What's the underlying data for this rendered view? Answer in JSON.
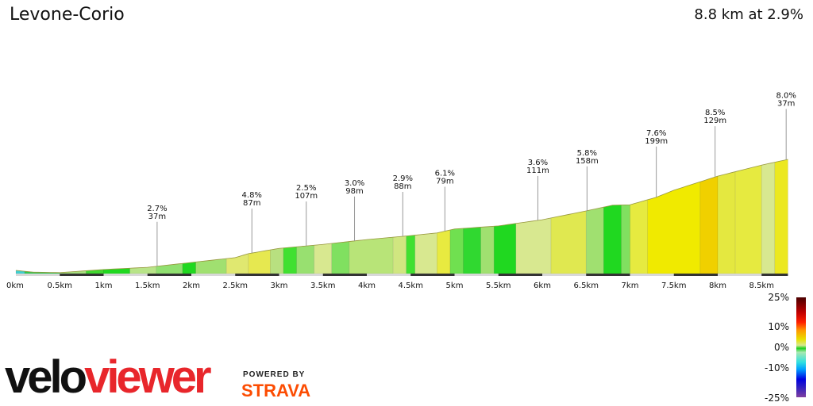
{
  "title": "Levone-Corio",
  "summary": "8.8 km at 2.9%",
  "chart_data": {
    "type": "area",
    "xlabel": "",
    "ylabel": "",
    "xlim": [
      0,
      8.8
    ],
    "x_ticks": [
      "0km",
      "0.5km",
      "1km",
      "1.5km",
      "2km",
      "2.5km",
      "3km",
      "3.5km",
      "4km",
      "4.5km",
      "5km",
      "5.5km",
      "6km",
      "6.5km",
      "7km",
      "7.5km",
      "8km",
      "8.5km"
    ],
    "profile_km": [
      0,
      0.2,
      0.5,
      1,
      1.5,
      2,
      2.5,
      2.65,
      3,
      3.5,
      4,
      4.5,
      4.8,
      5,
      5.5,
      6,
      6.5,
      6.8,
      7,
      7.3,
      7.5,
      8,
      8.5,
      8.8
    ],
    "profile_elev_m": [
      0,
      -4,
      -5,
      2,
      7,
      18,
      29,
      38,
      50,
      59,
      70,
      79,
      85,
      94,
      101,
      115,
      135,
      148,
      149,
      166,
      182,
      214,
      239,
      252
    ],
    "segments": [
      [
        0,
        0.1,
        "#40d0d0"
      ],
      [
        0.1,
        0.5,
        "#30c850"
      ],
      [
        0.5,
        0.8,
        "#a8e080"
      ],
      [
        0.8,
        1,
        "#40d830"
      ],
      [
        1,
        1.3,
        "#20d820"
      ],
      [
        1.3,
        1.6,
        "#b8e488"
      ],
      [
        1.6,
        1.9,
        "#90e070"
      ],
      [
        1.9,
        2.05,
        "#20d820"
      ],
      [
        2.05,
        2.4,
        "#a0e070"
      ],
      [
        2.4,
        2.65,
        "#e0e870"
      ],
      [
        2.65,
        2.9,
        "#e6e850"
      ],
      [
        2.9,
        3.05,
        "#b8e080"
      ],
      [
        3.05,
        3.2,
        "#40e030"
      ],
      [
        3.2,
        3.4,
        "#98e070"
      ],
      [
        3.4,
        3.6,
        "#d8e890"
      ],
      [
        3.6,
        3.8,
        "#80e060"
      ],
      [
        3.8,
        4.3,
        "#b8e478"
      ],
      [
        4.3,
        4.45,
        "#d0e680"
      ],
      [
        4.45,
        4.55,
        "#40e030"
      ],
      [
        4.55,
        4.8,
        "#d8e890"
      ],
      [
        4.8,
        4.95,
        "#e8ea40"
      ],
      [
        4.95,
        5.1,
        "#70e050"
      ],
      [
        5.1,
        5.3,
        "#30d830"
      ],
      [
        5.3,
        5.45,
        "#a0e070"
      ],
      [
        5.45,
        5.7,
        "#20d820"
      ],
      [
        5.7,
        6.1,
        "#d8e890"
      ],
      [
        6.1,
        6.5,
        "#e0e850"
      ],
      [
        6.5,
        6.7,
        "#a0e070"
      ],
      [
        6.7,
        6.9,
        "#20d820"
      ],
      [
        6.9,
        7.0,
        "#80e060"
      ],
      [
        7.0,
        7.2,
        "#e6ea40"
      ],
      [
        7.2,
        7.8,
        "#f0ea00"
      ],
      [
        7.8,
        8.0,
        "#f0d000"
      ],
      [
        8.0,
        8.2,
        "#e4e840"
      ],
      [
        8.2,
        8.5,
        "#e6ea40"
      ],
      [
        8.5,
        8.65,
        "#d8e890"
      ],
      [
        8.65,
        8.8,
        "#ece820"
      ]
    ],
    "annotations": [
      {
        "km": 1.61,
        "grade": "2.7%",
        "length": "37m"
      },
      {
        "km": 2.69,
        "grade": "4.8%",
        "length": "87m"
      },
      {
        "km": 3.31,
        "grade": "2.5%",
        "length": "107m"
      },
      {
        "km": 3.86,
        "grade": "3.0%",
        "length": "98m"
      },
      {
        "km": 4.41,
        "grade": "2.9%",
        "length": "88m"
      },
      {
        "km": 4.89,
        "grade": "6.1%",
        "length": "79m"
      },
      {
        "km": 5.95,
        "grade": "3.6%",
        "length": "111m"
      },
      {
        "km": 6.51,
        "grade": "5.8%",
        "length": "158m"
      },
      {
        "km": 7.3,
        "grade": "7.6%",
        "length": "199m"
      },
      {
        "km": 7.97,
        "grade": "8.5%",
        "length": "129m"
      },
      {
        "km": 8.78,
        "grade": "8.0%",
        "length": "37m"
      }
    ]
  },
  "legend": {
    "labels": [
      "25%",
      "10%",
      "0%",
      "-10%",
      "-25%"
    ]
  },
  "branding": {
    "logo_a": "velo",
    "logo_b": "viewer",
    "powered": "POWERED BY",
    "strava": "STRAVA",
    "strava_color": "#fc4c02"
  }
}
